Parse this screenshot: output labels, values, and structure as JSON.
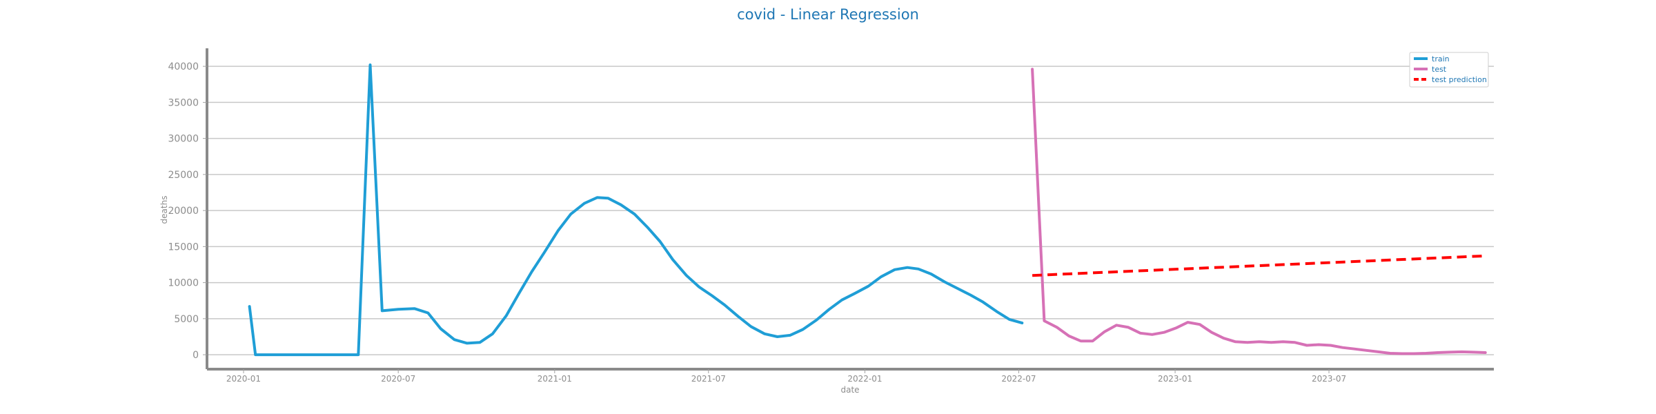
{
  "chart_data": {
    "type": "line",
    "title": "covid - Linear Regression",
    "xlabel": "date",
    "ylabel": "deaths",
    "x_type": "date",
    "xlim": [
      "2019-11-19",
      "2024-01-11"
    ],
    "ylim": [
      -2000,
      42500
    ],
    "x_ticks": [
      "2020-01",
      "2020-07",
      "2021-01",
      "2021-07",
      "2022-01",
      "2022-07",
      "2023-01",
      "2023-07"
    ],
    "y_ticks": [
      0,
      5000,
      10000,
      15000,
      20000,
      25000,
      30000,
      35000,
      40000
    ],
    "grid": "horizontal",
    "legend_position": "top-right",
    "series": [
      {
        "name": "train",
        "color": "#1f9ed6",
        "style": "solid",
        "points": [
          [
            "2020-01-08",
            6700
          ],
          [
            "2020-01-15",
            0
          ],
          [
            "2020-02-01",
            0
          ],
          [
            "2020-03-01",
            0
          ],
          [
            "2020-04-01",
            0
          ],
          [
            "2020-05-01",
            0
          ],
          [
            "2020-05-15",
            0
          ],
          [
            "2020-05-29",
            40200
          ],
          [
            "2020-06-12",
            6100
          ],
          [
            "2020-07-01",
            6300
          ],
          [
            "2020-07-20",
            6400
          ],
          [
            "2020-08-05",
            5800
          ],
          [
            "2020-08-20",
            3600
          ],
          [
            "2020-09-05",
            2100
          ],
          [
            "2020-09-20",
            1600
          ],
          [
            "2020-10-05",
            1700
          ],
          [
            "2020-10-20",
            2900
          ],
          [
            "2020-11-05",
            5400
          ],
          [
            "2020-11-20",
            8500
          ],
          [
            "2020-12-05",
            11500
          ],
          [
            "2020-12-20",
            14200
          ],
          [
            "2021-01-05",
            17200
          ],
          [
            "2021-01-20",
            19500
          ],
          [
            "2021-02-05",
            21000
          ],
          [
            "2021-02-20",
            21800
          ],
          [
            "2021-03-05",
            21700
          ],
          [
            "2021-03-20",
            20800
          ],
          [
            "2021-04-05",
            19500
          ],
          [
            "2021-04-20",
            17700
          ],
          [
            "2021-05-05",
            15700
          ],
          [
            "2021-05-20",
            13200
          ],
          [
            "2021-06-05",
            11000
          ],
          [
            "2021-06-20",
            9400
          ],
          [
            "2021-07-05",
            8200
          ],
          [
            "2021-07-20",
            6900
          ],
          [
            "2021-08-05",
            5300
          ],
          [
            "2021-08-20",
            3900
          ],
          [
            "2021-09-05",
            2900
          ],
          [
            "2021-09-20",
            2500
          ],
          [
            "2021-10-05",
            2700
          ],
          [
            "2021-10-20",
            3500
          ],
          [
            "2021-11-05",
            4800
          ],
          [
            "2021-11-20",
            6300
          ],
          [
            "2021-12-05",
            7600
          ],
          [
            "2021-12-20",
            8500
          ],
          [
            "2022-01-05",
            9500
          ],
          [
            "2022-01-20",
            10800
          ],
          [
            "2022-02-05",
            11800
          ],
          [
            "2022-02-20",
            12100
          ],
          [
            "2022-03-05",
            11900
          ],
          [
            "2022-03-20",
            11200
          ],
          [
            "2022-04-05",
            10100
          ],
          [
            "2022-04-20",
            9200
          ],
          [
            "2022-05-05",
            8300
          ],
          [
            "2022-05-20",
            7300
          ],
          [
            "2022-06-05",
            6000
          ],
          [
            "2022-06-20",
            4900
          ],
          [
            "2022-07-05",
            4400
          ]
        ]
      },
      {
        "name": "test",
        "color": "#d671b6",
        "style": "solid",
        "points": [
          [
            "2022-07-17",
            39600
          ],
          [
            "2022-07-31",
            4700
          ],
          [
            "2022-08-15",
            3800
          ],
          [
            "2022-08-29",
            2600
          ],
          [
            "2022-09-12",
            1900
          ],
          [
            "2022-09-26",
            1900
          ],
          [
            "2022-10-10",
            3200
          ],
          [
            "2022-10-24",
            4100
          ],
          [
            "2022-11-07",
            3800
          ],
          [
            "2022-11-21",
            3000
          ],
          [
            "2022-12-05",
            2800
          ],
          [
            "2022-12-19",
            3100
          ],
          [
            "2023-01-02",
            3700
          ],
          [
            "2023-01-16",
            4500
          ],
          [
            "2023-01-30",
            4200
          ],
          [
            "2023-02-13",
            3100
          ],
          [
            "2023-02-27",
            2300
          ],
          [
            "2023-03-13",
            1800
          ],
          [
            "2023-03-27",
            1700
          ],
          [
            "2023-04-10",
            1800
          ],
          [
            "2023-04-24",
            1700
          ],
          [
            "2023-05-08",
            1800
          ],
          [
            "2023-05-22",
            1700
          ],
          [
            "2023-06-05",
            1300
          ],
          [
            "2023-06-19",
            1400
          ],
          [
            "2023-07-03",
            1300
          ],
          [
            "2023-07-17",
            1000
          ],
          [
            "2023-07-31",
            800
          ],
          [
            "2023-08-14",
            600
          ],
          [
            "2023-08-28",
            400
          ],
          [
            "2023-09-11",
            200
          ],
          [
            "2023-09-25",
            150
          ],
          [
            "2023-10-09",
            150
          ],
          [
            "2023-10-23",
            200
          ],
          [
            "2023-11-06",
            300
          ],
          [
            "2023-11-20",
            350
          ],
          [
            "2023-12-04",
            400
          ],
          [
            "2023-12-18",
            350
          ],
          [
            "2024-01-01",
            300
          ]
        ]
      },
      {
        "name": "test prediction",
        "color": "#ff0000",
        "style": "dashed",
        "points": [
          [
            "2022-07-17",
            11000
          ],
          [
            "2023-12-31",
            13700
          ]
        ]
      }
    ]
  }
}
